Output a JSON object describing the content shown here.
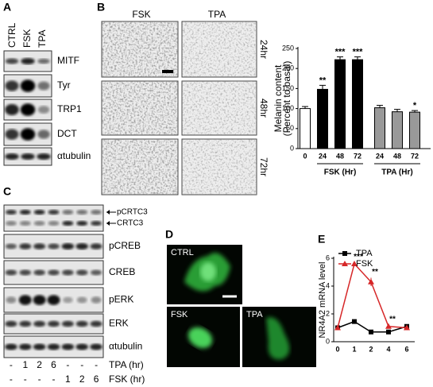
{
  "panels": [
    "A",
    "B",
    "C",
    "D",
    "E"
  ],
  "panel_a": {
    "lanes": [
      "CTRL",
      "FSK",
      "TPA"
    ],
    "blots": [
      "MITF",
      "Tyr",
      "TRP1",
      "DCT",
      "αtubulin"
    ]
  },
  "panel_b": {
    "columns": [
      "FSK",
      "TPA"
    ],
    "rows": [
      "24hr",
      "48hr",
      "72hr"
    ]
  },
  "panel_c": {
    "crtc_labels": [
      "pCRTC3",
      "CRTC3"
    ],
    "blots": [
      "pCREB",
      "CREB",
      "pERK",
      "ERK",
      "αtubulin"
    ],
    "treatments": [
      {
        "label": "TPA (hr)",
        "lanes": [
          "-",
          "1",
          "2",
          "6",
          "-",
          "-",
          "-"
        ]
      },
      {
        "label": "FSK (hr)",
        "lanes": [
          "-",
          "-",
          "-",
          "-",
          "1",
          "2",
          "6"
        ]
      }
    ]
  },
  "panel_d": {
    "images": [
      "CTRL",
      "FSK",
      "TPA"
    ]
  },
  "chart_data": [
    {
      "type": "bar",
      "ylabel": [
        "Melanin content",
        "(Percent to basal)"
      ],
      "categories": [
        "0",
        "24",
        "48",
        "72",
        "24",
        "48",
        "72"
      ],
      "values": [
        100,
        148,
        222,
        222,
        102,
        92,
        91
      ],
      "errors": [
        5,
        10,
        7,
        7,
        6,
        6,
        4
      ],
      "colors": [
        "#ffffff",
        "#000000",
        "#000000",
        "#000000",
        "#999999",
        "#999999",
        "#999999"
      ],
      "significance": [
        null,
        "**",
        "***",
        "***",
        null,
        null,
        "*"
      ],
      "group_labels": [
        "FSK (Hr)",
        "TPA (Hr)"
      ],
      "ylim": [
        0,
        250
      ],
      "yticks": [
        0,
        50,
        100,
        150,
        200,
        250
      ]
    },
    {
      "type": "line",
      "ylabel": "NR4A2 mRNA level",
      "categories": [
        "0",
        "1",
        "2",
        "4",
        "6"
      ],
      "series": [
        {
          "name": "TPA",
          "color": "#000000",
          "marker": "square",
          "values": [
            1,
            1.45,
            0.7,
            0.7,
            1.1
          ]
        },
        {
          "name": "FSK",
          "color": "#d62728",
          "marker": "triangle",
          "values": [
            1,
            5.6,
            4.3,
            1.1,
            1.0
          ],
          "errors": [
            0.05,
            0.1,
            0.3,
            0.1,
            0.05
          ]
        }
      ],
      "significance": [
        null,
        "***",
        "**",
        "**",
        null
      ],
      "legend": "upper left",
      "ylim": [
        0,
        6
      ],
      "yticks": [
        0,
        2,
        4,
        6
      ]
    }
  ]
}
